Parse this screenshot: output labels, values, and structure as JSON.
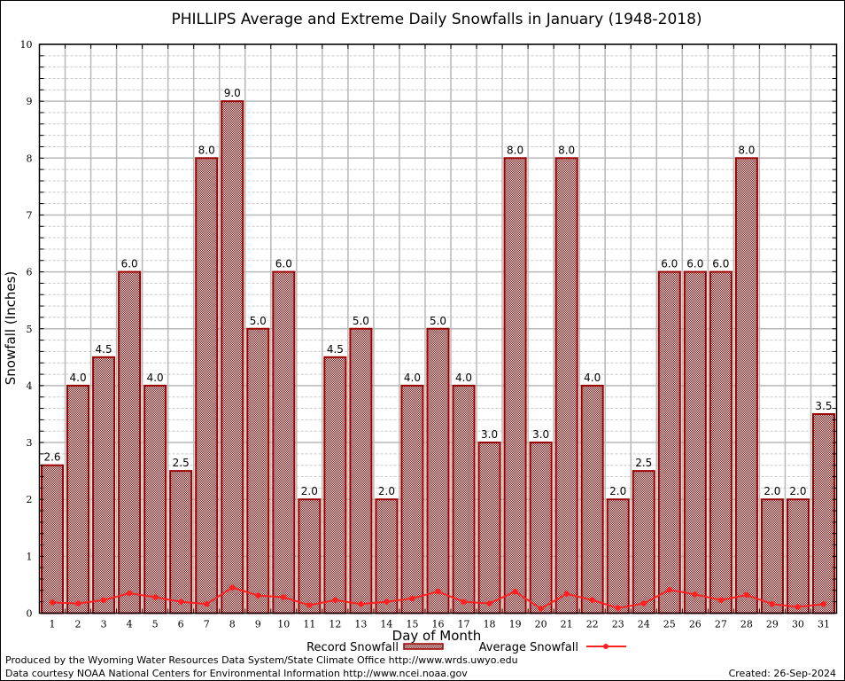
{
  "chart_data": {
    "type": "bar",
    "title": "PHILLIPS Average and Extreme Daily Snowfalls in January (1948-2018)",
    "xlabel": "Day of Month",
    "ylabel": "Snowfall (Inches)",
    "ylim": [
      0,
      10
    ],
    "yticks": [
      0,
      1,
      2,
      3,
      4,
      5,
      6,
      7,
      8,
      9,
      10
    ],
    "grid": true,
    "legend_position": "bottom",
    "categories": [
      "1",
      "2",
      "3",
      "4",
      "5",
      "6",
      "7",
      "8",
      "9",
      "10",
      "11",
      "12",
      "13",
      "14",
      "15",
      "16",
      "17",
      "18",
      "19",
      "20",
      "21",
      "22",
      "23",
      "24",
      "25",
      "26",
      "27",
      "28",
      "29",
      "30",
      "31"
    ],
    "series": [
      {
        "name": "Record Snowfall",
        "kind": "bar",
        "color": "#990000",
        "values": [
          2.6,
          4.0,
          4.5,
          6.0,
          4.0,
          2.5,
          8.0,
          9.0,
          5.0,
          6.0,
          2.0,
          4.5,
          5.0,
          2.0,
          4.0,
          5.0,
          4.0,
          3.0,
          8.0,
          3.0,
          8.0,
          4.0,
          2.0,
          2.5,
          6.0,
          6.0,
          6.0,
          8.0,
          2.0,
          2.0,
          3.5
        ],
        "labels": [
          "2.6",
          "4.0",
          "4.5",
          "6.0",
          "4.0",
          "2.5",
          "8.0",
          "9.0",
          "5.0",
          "6.0",
          "2.0",
          "4.5",
          "5.0",
          "2.0",
          "4.0",
          "5.0",
          "4.0",
          "3.0",
          "8.0",
          "3.0",
          "8.0",
          "4.0",
          "2.0",
          "2.5",
          "6.0",
          "6.0",
          "6.0",
          "8.0",
          "2.0",
          "2.0",
          "3.5"
        ]
      },
      {
        "name": "Average Snowfall",
        "kind": "line",
        "color": "#ff2020",
        "values": [
          0.19,
          0.17,
          0.23,
          0.35,
          0.28,
          0.2,
          0.16,
          0.45,
          0.31,
          0.28,
          0.14,
          0.23,
          0.16,
          0.2,
          0.26,
          0.38,
          0.2,
          0.17,
          0.38,
          0.08,
          0.34,
          0.23,
          0.09,
          0.17,
          0.41,
          0.33,
          0.23,
          0.32,
          0.16,
          0.11,
          0.16
        ]
      }
    ]
  },
  "footer": {
    "credit1": "Produced by the Wyoming Water Resources Data System/State Climate Office http://www.wrds.uwyo.edu",
    "credit2": "Data courtesy NOAA National Centers for Environmental Information http://www.ncei.noaa.gov",
    "created": "Created: 26-Sep-2024"
  }
}
